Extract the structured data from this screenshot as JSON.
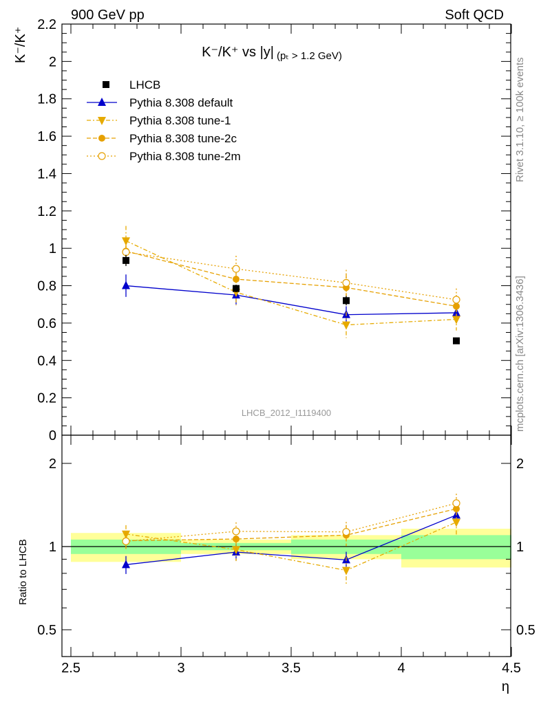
{
  "header": {
    "left": "900 GeV pp",
    "right": "Soft QCD"
  },
  "side": {
    "rivet": "Rivet 3.1.10, ≥ 100k events",
    "mcplots": "mcplots.cern.ch [arXiv:1306.3436]"
  },
  "chart_data": {
    "type": "scatter",
    "title_main": "K⁻/K⁺ vs |y|",
    "title_sub": "(pₜ > 1.2 GeV)",
    "ylabel": "K⁻/K⁺",
    "ratio_ylabel": "Ratio to LHCB",
    "xlabel": "η",
    "watermark": "LHCB_2012_I1119400",
    "xlim": [
      2.5,
      4.5
    ],
    "ylim": [
      0,
      2.2
    ],
    "ratio_ylim": [
      0.4,
      2.4
    ],
    "x_ticks": [
      "2.5",
      "3",
      "3.5",
      "4",
      "4.5"
    ],
    "y_ticks": [
      "0",
      "0.2",
      "0.4",
      "0.6",
      "0.8",
      "1",
      "1.2",
      "1.4",
      "1.6",
      "1.8",
      "2",
      "2.2"
    ],
    "ratio_ticks": [
      "0.5",
      "1",
      "2"
    ],
    "x": [
      2.75,
      3.25,
      3.75,
      4.25
    ],
    "bins": [
      [
        2.5,
        3.0
      ],
      [
        3.0,
        3.5
      ],
      [
        3.5,
        4.0
      ],
      [
        4.0,
        4.5
      ]
    ],
    "data": {
      "name": "LHCB",
      "values": [
        0.935,
        0.785,
        0.72,
        0.505
      ],
      "errors": [
        0.03,
        0.02,
        0.025,
        0.015
      ],
      "ratio_band_inner": [
        0.06,
        0.03,
        0.06,
        0.1
      ],
      "ratio_band_outer": [
        0.12,
        0.06,
        0.1,
        0.16
      ]
    },
    "series": [
      {
        "name": "Pythia 8.308 default",
        "color": "#0000cc",
        "marker": "triangle-up",
        "dash": "",
        "values": [
          0.8,
          0.75,
          0.645,
          0.655
        ],
        "errors": [
          0.06,
          0.05,
          0.045,
          0.04
        ],
        "ratio": [
          0.86,
          0.955,
          0.895,
          1.3
        ]
      },
      {
        "name": "Pythia 8.308 tune-1",
        "color": "#e6aa00",
        "marker": "triangle-down",
        "dash": "6 3 2 3",
        "values": [
          1.04,
          0.765,
          0.59,
          0.62
        ],
        "errors": [
          0.08,
          0.07,
          0.07,
          0.06
        ],
        "ratio": [
          1.11,
          0.975,
          0.82,
          1.225
        ]
      },
      {
        "name": "Pythia 8.308 tune-2c",
        "color": "#e6a000",
        "marker": "circle",
        "dash": "6 3",
        "values": [
          0.985,
          0.835,
          0.79,
          0.69
        ],
        "errors": [
          0.07,
          0.07,
          0.07,
          0.06
        ],
        "ratio": [
          1.05,
          1.065,
          1.1,
          1.37
        ]
      },
      {
        "name": "Pythia 8.308 tune-2m",
        "color": "#e6a000",
        "marker": "circle-open",
        "dash": "2 3",
        "values": [
          0.98,
          0.89,
          0.815,
          0.725
        ],
        "errors": [
          0.07,
          0.07,
          0.07,
          0.06
        ],
        "ratio": [
          1.045,
          1.135,
          1.13,
          1.435
        ]
      }
    ],
    "legend_placement": "top-left"
  }
}
